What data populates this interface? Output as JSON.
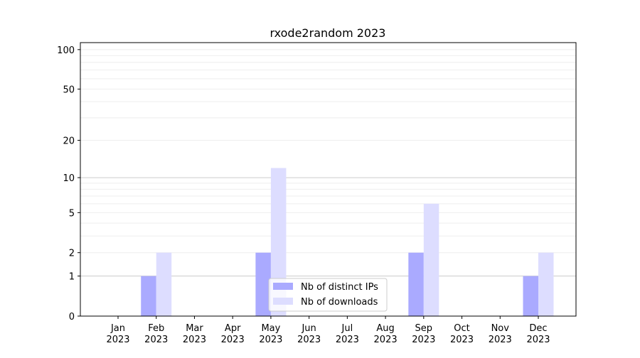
{
  "chart_data": {
    "type": "bar",
    "title": "rxode2random 2023",
    "xlabel": "",
    "ylabel": "",
    "y_scale": "log(1+y)",
    "ylim": [
      0,
      113
    ],
    "yticks": [
      0,
      1,
      2,
      5,
      10,
      20,
      50,
      100
    ],
    "grid": true,
    "legend_placement": "bottom-center",
    "categories": [
      "Jan\n2023",
      "Feb\n2023",
      "Mar\n2023",
      "Apr\n2023",
      "May\n2023",
      "Jun\n2023",
      "Jul\n2023",
      "Aug\n2023",
      "Sep\n2023",
      "Oct\n2023",
      "Nov\n2023",
      "Dec\n2023"
    ],
    "series": [
      {
        "name": "Nb of distinct IPs",
        "color": "#aaaaff",
        "values": [
          0,
          1,
          0,
          0,
          2,
          0,
          0,
          0,
          2,
          0,
          0,
          1
        ]
      },
      {
        "name": "Nb of downloads",
        "color": "#ddddff",
        "values": [
          0,
          2,
          0,
          0,
          12,
          0,
          0,
          0,
          6,
          0,
          0,
          2
        ]
      }
    ]
  }
}
